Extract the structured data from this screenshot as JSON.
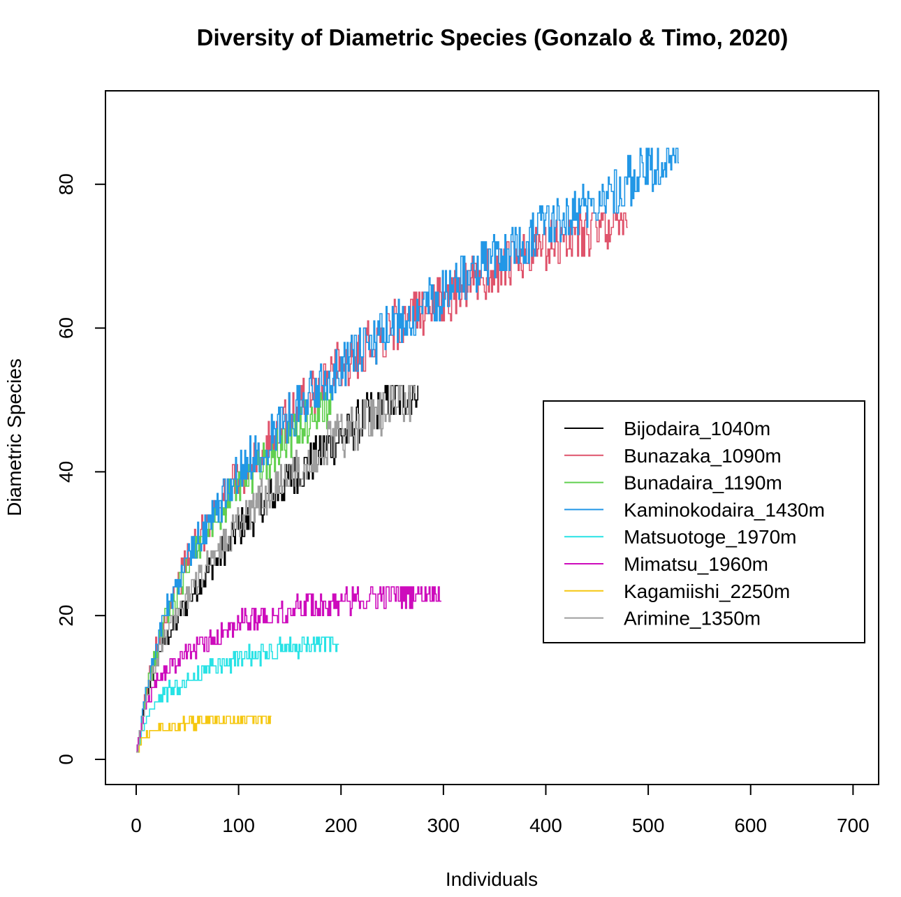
{
  "chart_data": {
    "type": "line",
    "title": "Diversity of Diametric Species (Gonzalo & Timo, 2020)",
    "xlabel": "Individuals",
    "ylabel": "Diametric Species",
    "xlim": [
      -30,
      725
    ],
    "ylim": [
      -3.5,
      93
    ],
    "x_ticks": [
      0,
      100,
      200,
      300,
      400,
      500,
      600,
      700
    ],
    "y_ticks": [
      0,
      20,
      40,
      60,
      80
    ],
    "legend_position": "right",
    "grid": false,
    "series": [
      {
        "name": "Bijodaira_1040m",
        "color": "#000000",
        "n": 275,
        "max": 52,
        "x": [
          0,
          10,
          25,
          50,
          75,
          100,
          150,
          200,
          250,
          275
        ],
        "y": [
          1,
          9,
          16,
          22,
          27,
          32,
          39,
          45,
          50,
          52
        ]
      },
      {
        "name": "Bunazaka_1090m",
        "color": "#df536b",
        "n": 480,
        "max": 76,
        "x": [
          0,
          10,
          25,
          50,
          75,
          100,
          150,
          200,
          250,
          300,
          350,
          400,
          450,
          480
        ],
        "y": [
          1,
          10,
          19,
          28,
          34,
          39,
          48,
          55,
          60,
          64,
          68,
          71,
          74,
          76
        ]
      },
      {
        "name": "Bunadaira_1190m",
        "color": "#61d04f",
        "n": 190,
        "max": 51,
        "x": [
          0,
          10,
          25,
          50,
          75,
          100,
          150,
          190
        ],
        "y": [
          1,
          10,
          18,
          27,
          33,
          38,
          45,
          50
        ]
      },
      {
        "name": "Kaminokodaira_1430m",
        "color": "#2297e6",
        "n": 530,
        "max": 85,
        "x": [
          0,
          10,
          25,
          50,
          75,
          100,
          150,
          200,
          250,
          300,
          350,
          400,
          450,
          500,
          530
        ],
        "y": [
          1,
          10,
          19,
          28,
          34,
          40,
          48,
          55,
          60,
          65,
          70,
          74,
          78,
          82,
          84
        ]
      },
      {
        "name": "Matsuotoge_1970m",
        "color": "#28e2e5",
        "n": 198,
        "max": 17,
        "x": [
          0,
          10,
          25,
          50,
          75,
          100,
          150,
          198
        ],
        "y": [
          1,
          6,
          9,
          11,
          13,
          14,
          15.5,
          16.5
        ]
      },
      {
        "name": "Mimatsu_1960m",
        "color": "#cd0bbc",
        "n": 298,
        "max": 24,
        "x": [
          0,
          10,
          25,
          50,
          75,
          100,
          150,
          200,
          250,
          298
        ],
        "y": [
          1,
          8,
          12,
          15,
          17,
          19,
          21,
          22,
          23,
          23.5
        ]
      },
      {
        "name": "Kagamiishi_2250m",
        "color": "#f5c710",
        "n": 132,
        "max": 6,
        "x": [
          0,
          10,
          25,
          50,
          75,
          100,
          132
        ],
        "y": [
          1,
          3.5,
          4.5,
          5,
          5.5,
          5.7,
          6
        ]
      },
      {
        "name": "Arimine_1350m",
        "color": "#9e9e9e",
        "n": 272,
        "max": 52,
        "x": [
          0,
          10,
          25,
          50,
          75,
          100,
          150,
          200,
          250,
          272
        ],
        "y": [
          1,
          9,
          16,
          23,
          28,
          33,
          40,
          45,
          49,
          51
        ]
      }
    ]
  }
}
